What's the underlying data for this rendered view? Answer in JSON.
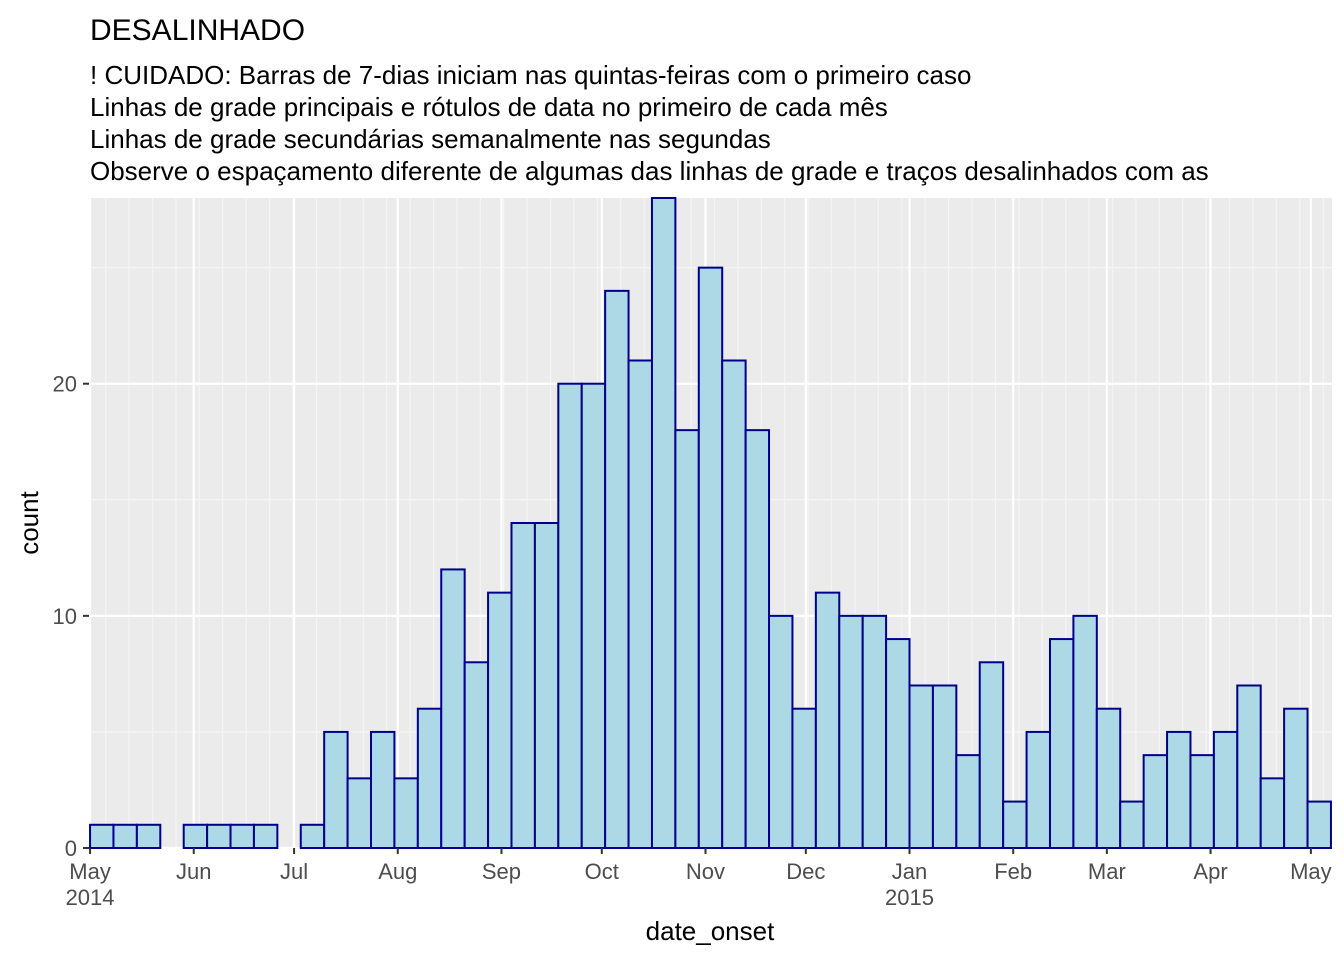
{
  "chart_data": {
    "type": "bar",
    "title": "DESALINHADO",
    "subtitle_lines": [
      "! CUIDADO: Barras de 7-dias iniciam nas quintas-feiras com o primeiro caso",
      "Linhas de grade principais e rótulos de data no primeiro de cada mês",
      "Linhas de grade secundárias semanalmente nas segundas",
      "Observe o espaçamento diferente de algumas das linhas de grade e traços desalinhados com as"
    ],
    "xlabel": "date_onset",
    "ylabel": "count",
    "ylim": [
      0,
      28
    ],
    "y_ticks": [
      0,
      10,
      20
    ],
    "x_tick_labels": [
      "May\n2014",
      "Jun",
      "Jul",
      "Aug",
      "Sep",
      "Oct",
      "Nov",
      "Dec",
      "Jan\n2015",
      "Feb",
      "Mar",
      "Apr",
      "May"
    ],
    "bin_width_days": 7,
    "bin_width": "7 days",
    "bin_start": "Thursday",
    "bins": [
      {
        "start": "2014-05-01",
        "value": 1
      },
      {
        "start": "2014-05-08",
        "value": 1
      },
      {
        "start": "2014-05-15",
        "value": 1
      },
      {
        "start": "2014-05-22",
        "value": 0
      },
      {
        "start": "2014-05-29",
        "value": 1
      },
      {
        "start": "2014-06-05",
        "value": 1
      },
      {
        "start": "2014-06-12",
        "value": 1
      },
      {
        "start": "2014-06-19",
        "value": 1
      },
      {
        "start": "2014-06-26",
        "value": 0
      },
      {
        "start": "2014-07-03",
        "value": 1
      },
      {
        "start": "2014-07-10",
        "value": 5
      },
      {
        "start": "2014-07-17",
        "value": 3
      },
      {
        "start": "2014-07-24",
        "value": 5
      },
      {
        "start": "2014-07-31",
        "value": 3
      },
      {
        "start": "2014-08-07",
        "value": 6
      },
      {
        "start": "2014-08-14",
        "value": 12
      },
      {
        "start": "2014-08-21",
        "value": 8
      },
      {
        "start": "2014-08-28",
        "value": 11
      },
      {
        "start": "2014-09-04",
        "value": 14
      },
      {
        "start": "2014-09-11",
        "value": 14
      },
      {
        "start": "2014-09-18",
        "value": 20
      },
      {
        "start": "2014-09-25",
        "value": 20
      },
      {
        "start": "2014-10-02",
        "value": 24
      },
      {
        "start": "2014-10-09",
        "value": 21
      },
      {
        "start": "2014-10-16",
        "value": 28
      },
      {
        "start": "2014-10-23",
        "value": 18
      },
      {
        "start": "2014-10-30",
        "value": 25
      },
      {
        "start": "2014-11-06",
        "value": 21
      },
      {
        "start": "2014-11-13",
        "value": 18
      },
      {
        "start": "2014-11-20",
        "value": 10
      },
      {
        "start": "2014-11-27",
        "value": 6
      },
      {
        "start": "2014-12-04",
        "value": 11
      },
      {
        "start": "2014-12-11",
        "value": 10
      },
      {
        "start": "2014-12-18",
        "value": 10
      },
      {
        "start": "2014-12-25",
        "value": 9
      },
      {
        "start": "2015-01-01",
        "value": 7
      },
      {
        "start": "2015-01-08",
        "value": 7
      },
      {
        "start": "2015-01-15",
        "value": 4
      },
      {
        "start": "2015-01-22",
        "value": 8
      },
      {
        "start": "2015-01-29",
        "value": 2
      },
      {
        "start": "2015-02-05",
        "value": 5
      },
      {
        "start": "2015-02-12",
        "value": 9
      },
      {
        "start": "2015-02-19",
        "value": 10
      },
      {
        "start": "2015-02-26",
        "value": 6
      },
      {
        "start": "2015-03-05",
        "value": 2
      },
      {
        "start": "2015-03-12",
        "value": 4
      },
      {
        "start": "2015-03-19",
        "value": 5
      },
      {
        "start": "2015-03-26",
        "value": 4
      },
      {
        "start": "2015-04-02",
        "value": 5
      },
      {
        "start": "2015-04-09",
        "value": 7
      },
      {
        "start": "2015-04-16",
        "value": 3
      },
      {
        "start": "2015-04-23",
        "value": 6
      },
      {
        "start": "2015-04-30",
        "value": 2
      }
    ],
    "bar_fill": "#add8e6",
    "bar_outline": "#00008b",
    "panel_background": "#ebebeb",
    "grid_major_color": "#ffffff",
    "grid": true,
    "legend": "none"
  }
}
